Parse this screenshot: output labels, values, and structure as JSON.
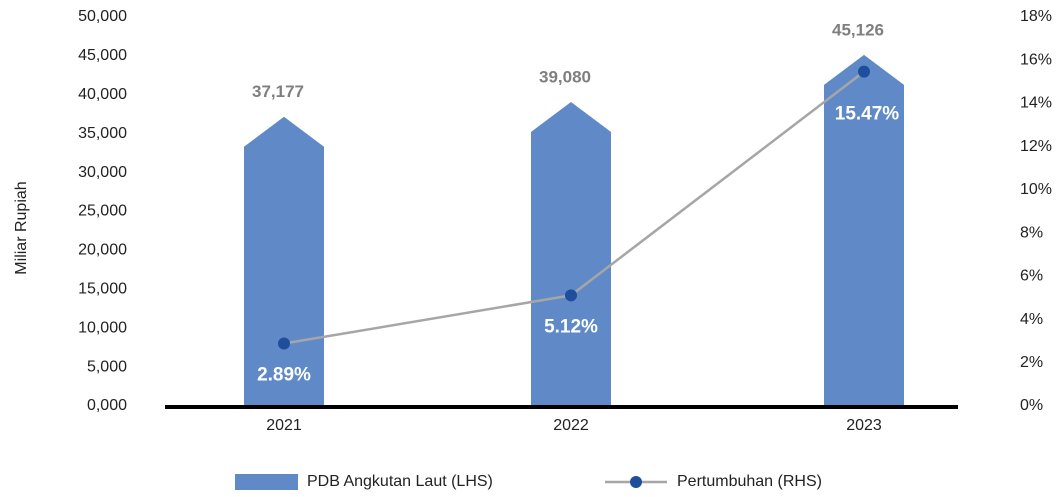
{
  "chart_data": {
    "type": "bar",
    "y_axis_label": "Miliar Rupiah",
    "categories": [
      "2021",
      "2022",
      "2023"
    ],
    "series": [
      {
        "name": "PDB Angkutan Laut (LHS)",
        "type": "bar",
        "color": "#5f8ac7",
        "values": [
          37177,
          39080,
          45126
        ],
        "value_labels": [
          "37,177",
          "39,080",
          "45,126"
        ]
      },
      {
        "name": "Pertumbuhan (RHS)",
        "type": "line",
        "axis": "y2",
        "color": "#a6a6a6",
        "marker_color": "#1f4e9c",
        "values": [
          2.89,
          5.12,
          15.47
        ],
        "value_labels": [
          "2.89%",
          "5.12%",
          "15.47%"
        ]
      }
    ],
    "ylim": [
      0,
      50000
    ],
    "yticks": [
      {
        "value": 0,
        "label": "0,000"
      },
      {
        "value": 5000,
        "label": "5,000"
      },
      {
        "value": 10000,
        "label": "10,000"
      },
      {
        "value": 15000,
        "label": "15,000"
      },
      {
        "value": 20000,
        "label": "20,000"
      },
      {
        "value": 25000,
        "label": "25,000"
      },
      {
        "value": 30000,
        "label": "30,000"
      },
      {
        "value": 35000,
        "label": "35,000"
      },
      {
        "value": 40000,
        "label": "40,000"
      },
      {
        "value": 45000,
        "label": "45,000"
      },
      {
        "value": 50000,
        "label": "50,000"
      }
    ],
    "y2lim": [
      0,
      18
    ],
    "y2ticks": [
      {
        "value": 0,
        "label": "0%"
      },
      {
        "value": 2,
        "label": "2%"
      },
      {
        "value": 4,
        "label": "4%"
      },
      {
        "value": 6,
        "label": "6%"
      },
      {
        "value": 8,
        "label": "8%"
      },
      {
        "value": 10,
        "label": "10%"
      },
      {
        "value": 12,
        "label": "12%"
      },
      {
        "value": 14,
        "label": "14%"
      },
      {
        "value": 16,
        "label": "16%"
      },
      {
        "value": 18,
        "label": "18%"
      }
    ],
    "legend": "bottom"
  }
}
